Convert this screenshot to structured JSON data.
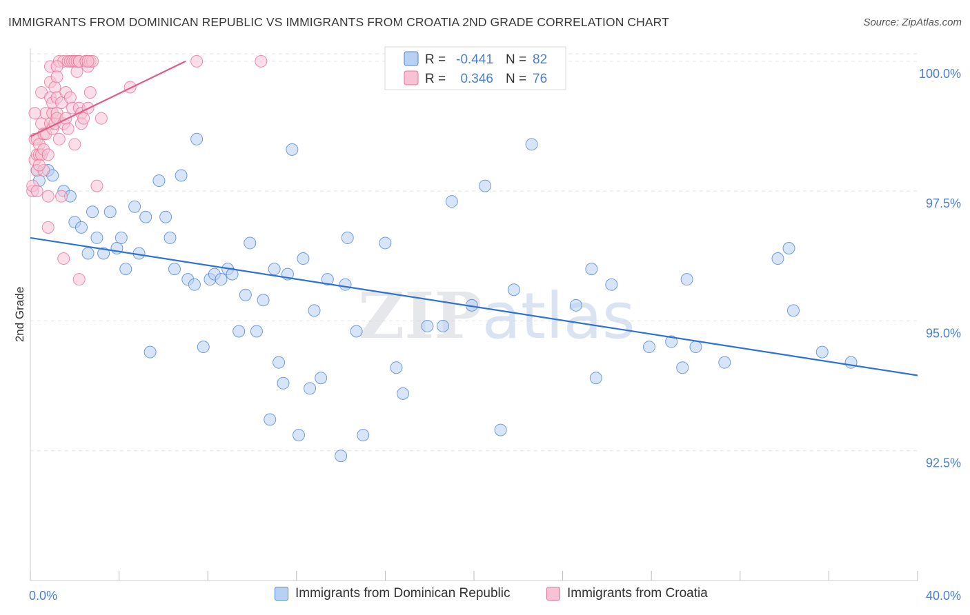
{
  "header": {
    "title": "IMMIGRANTS FROM DOMINICAN REPUBLIC VS IMMIGRANTS FROM CROATIA 2ND GRADE CORRELATION CHART",
    "source": "Source: ZipAtlas.com"
  },
  "watermark": "ZIPatlas",
  "colors": {
    "blue": "#4f86d6",
    "blue_fill": "#b8d0f2",
    "blue_line": "#2d72d2",
    "pink": "#e8739a",
    "pink_fill": "#f7c3d4",
    "pink_line": "#e05d8a",
    "tick_label": "#4a7fd0"
  },
  "legend_top": [
    {
      "r_label": "R =",
      "r_value": "-0.441",
      "n_label": "N =",
      "n_value": "82"
    },
    {
      "r_label": "R =",
      "r_value": "0.346",
      "n_label": "N =",
      "n_value": "76"
    }
  ],
  "chart_data": {
    "type": "scatter",
    "title": "IMMIGRANTS FROM DOMINICAN REPUBLIC VS IMMIGRANTS FROM CROATIA 2ND GRADE CORRELATION CHART",
    "xlabel": "",
    "ylabel": "2nd Grade",
    "xlim": [
      0,
      40
    ],
    "ylim": [
      90.0,
      100.25
    ],
    "x_tick_labels": [
      "0.0%",
      "40.0%"
    ],
    "y_ticks": [
      92.5,
      95.0,
      97.5,
      100.0
    ],
    "y_tick_labels": [
      "92.5%",
      "95.0%",
      "97.5%",
      "100.0%"
    ],
    "grid": true,
    "legend_position": "top-center",
    "series": [
      {
        "name": "Immigrants from Dominican Republic",
        "r": -0.441,
        "n": 82,
        "trend": [
          [
            0,
            96.6
          ],
          [
            40,
            93.95
          ]
        ],
        "points": [
          [
            0.3,
            97.9
          ],
          [
            0.4,
            97.7
          ],
          [
            0.8,
            97.9
          ],
          [
            1.0,
            97.8
          ],
          [
            1.5,
            97.5
          ],
          [
            1.8,
            97.4
          ],
          [
            2.0,
            96.9
          ],
          [
            2.3,
            96.8
          ],
          [
            2.6,
            96.3
          ],
          [
            2.8,
            97.1
          ],
          [
            3.0,
            96.6
          ],
          [
            3.3,
            96.3
          ],
          [
            3.6,
            97.1
          ],
          [
            3.9,
            96.4
          ],
          [
            4.1,
            96.6
          ],
          [
            4.3,
            96.0
          ],
          [
            4.7,
            97.2
          ],
          [
            4.9,
            96.3
          ],
          [
            5.2,
            97.0
          ],
          [
            5.4,
            94.4
          ],
          [
            5.8,
            97.7
          ],
          [
            6.1,
            97.0
          ],
          [
            6.3,
            96.6
          ],
          [
            6.5,
            96.0
          ],
          [
            6.8,
            97.8
          ],
          [
            7.1,
            95.8
          ],
          [
            7.4,
            95.7
          ],
          [
            7.5,
            98.5
          ],
          [
            7.8,
            94.5
          ],
          [
            8.1,
            95.8
          ],
          [
            8.3,
            95.9
          ],
          [
            8.6,
            95.8
          ],
          [
            8.9,
            96.0
          ],
          [
            9.1,
            95.9
          ],
          [
            9.4,
            94.8
          ],
          [
            9.7,
            95.5
          ],
          [
            9.9,
            96.5
          ],
          [
            10.2,
            94.8
          ],
          [
            10.5,
            95.4
          ],
          [
            10.8,
            93.1
          ],
          [
            11.0,
            96.0
          ],
          [
            11.2,
            94.2
          ],
          [
            11.4,
            93.8
          ],
          [
            11.6,
            95.9
          ],
          [
            11.8,
            98.3
          ],
          [
            12.1,
            92.8
          ],
          [
            12.3,
            96.2
          ],
          [
            12.6,
            93.7
          ],
          [
            12.8,
            95.2
          ],
          [
            13.1,
            93.9
          ],
          [
            13.4,
            95.8
          ],
          [
            14.0,
            92.4
          ],
          [
            14.2,
            95.7
          ],
          [
            14.3,
            96.6
          ],
          [
            14.7,
            94.8
          ],
          [
            15.0,
            92.8
          ],
          [
            16.0,
            96.5
          ],
          [
            16.5,
            94.1
          ],
          [
            16.8,
            93.6
          ],
          [
            17.9,
            94.9
          ],
          [
            18.6,
            94.9
          ],
          [
            19.0,
            97.3
          ],
          [
            19.9,
            95.3
          ],
          [
            20.5,
            97.6
          ],
          [
            21.2,
            92.9
          ],
          [
            21.8,
            95.6
          ],
          [
            22.6,
            98.4
          ],
          [
            24.6,
            95.3
          ],
          [
            25.3,
            96.0
          ],
          [
            25.5,
            93.9
          ],
          [
            26.2,
            95.7
          ],
          [
            27.9,
            94.5
          ],
          [
            28.9,
            94.6
          ],
          [
            29.4,
            94.1
          ],
          [
            29.6,
            95.8
          ],
          [
            30.0,
            94.5
          ],
          [
            31.3,
            94.2
          ],
          [
            33.7,
            96.2
          ],
          [
            34.2,
            96.4
          ],
          [
            34.4,
            95.2
          ],
          [
            35.7,
            94.4
          ],
          [
            37.0,
            94.2
          ]
        ]
      },
      {
        "name": "Immigrants from Croatia",
        "r": 0.346,
        "n": 76,
        "trend": [
          [
            0,
            98.55
          ],
          [
            7.0,
            100.0
          ]
        ],
        "points": [
          [
            0.1,
            97.5
          ],
          [
            0.1,
            97.6
          ],
          [
            0.2,
            98.1
          ],
          [
            0.2,
            98.5
          ],
          [
            0.2,
            99.0
          ],
          [
            0.3,
            98.2
          ],
          [
            0.3,
            98.5
          ],
          [
            0.3,
            97.5
          ],
          [
            0.3,
            97.9
          ],
          [
            0.4,
            98.2
          ],
          [
            0.4,
            98.4
          ],
          [
            0.5,
            98.8
          ],
          [
            0.5,
            99.4
          ],
          [
            0.5,
            98.2
          ],
          [
            0.6,
            98.3
          ],
          [
            0.6,
            98.6
          ],
          [
            0.6,
            97.9
          ],
          [
            0.7,
            98.6
          ],
          [
            0.7,
            99.0
          ],
          [
            0.8,
            96.8
          ],
          [
            0.8,
            97.4
          ],
          [
            0.8,
            98.2
          ],
          [
            0.9,
            99.3
          ],
          [
            0.9,
            98.8
          ],
          [
            0.9,
            99.6
          ],
          [
            0.9,
            99.9
          ],
          [
            1.0,
            99.0
          ],
          [
            1.0,
            99.2
          ],
          [
            1.0,
            98.7
          ],
          [
            1.1,
            99.5
          ],
          [
            1.1,
            98.8
          ],
          [
            1.2,
            99.3
          ],
          [
            1.2,
            99.0
          ],
          [
            1.2,
            98.9
          ],
          [
            1.3,
            100.0
          ],
          [
            1.3,
            98.5
          ],
          [
            1.4,
            99.2
          ],
          [
            1.4,
            97.4
          ],
          [
            1.5,
            100.0
          ],
          [
            1.5,
            98.8
          ],
          [
            1.5,
            96.2
          ],
          [
            1.6,
            99.4
          ],
          [
            1.6,
            98.9
          ],
          [
            1.7,
            100.0
          ],
          [
            1.7,
            98.7
          ],
          [
            1.8,
            100.0
          ],
          [
            1.8,
            99.3
          ],
          [
            1.9,
            100.0
          ],
          [
            1.9,
            99.1
          ],
          [
            2.0,
            100.0
          ],
          [
            2.0,
            98.4
          ],
          [
            2.1,
            99.8
          ],
          [
            2.1,
            100.0
          ],
          [
            2.2,
            100.0
          ],
          [
            2.2,
            99.1
          ],
          [
            2.2,
            100.0
          ],
          [
            2.3,
            99.0
          ],
          [
            2.3,
            98.8
          ],
          [
            2.4,
            98.9
          ],
          [
            2.5,
            100.0
          ],
          [
            2.5,
            100.0
          ],
          [
            2.6,
            99.9
          ],
          [
            2.6,
            99.1
          ],
          [
            2.7,
            99.4
          ],
          [
            2.7,
            100.0
          ],
          [
            2.8,
            100.0
          ],
          [
            3.0,
            97.6
          ],
          [
            3.2,
            98.9
          ],
          [
            4.5,
            99.5
          ],
          [
            7.5,
            100.0
          ],
          [
            10.4,
            100.0
          ],
          [
            2.6,
            100.0
          ],
          [
            1.2,
            99.9
          ],
          [
            1.2,
            99.7
          ],
          [
            2.2,
            95.8
          ],
          [
            0.4,
            98.0
          ]
        ]
      }
    ]
  }
}
